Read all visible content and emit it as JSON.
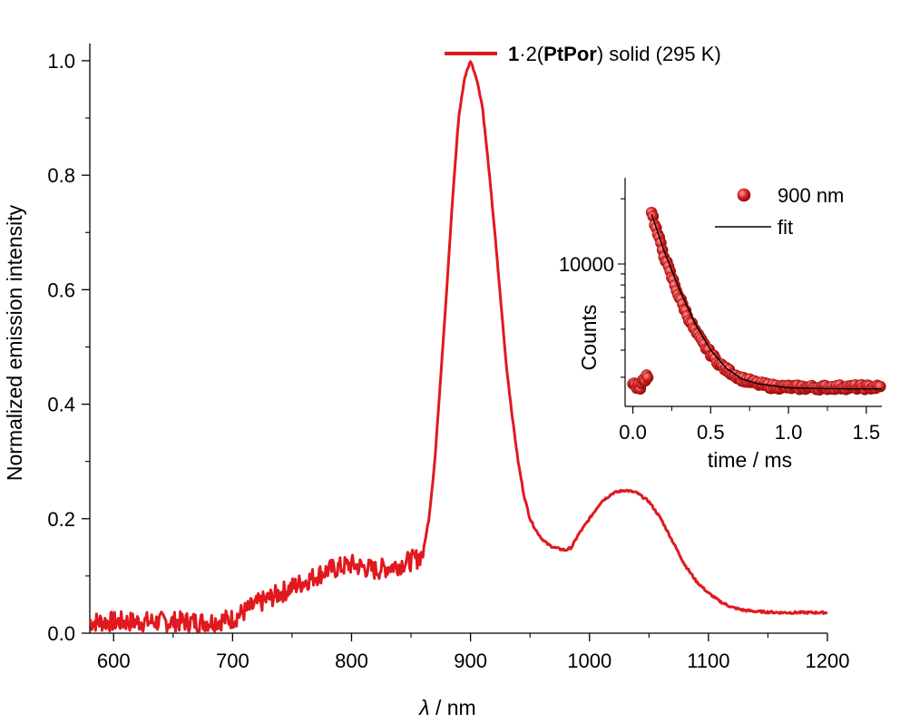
{
  "chart_data": [
    {
      "type": "line",
      "name": "emission-spectrum",
      "xlabel_symbol": "λ",
      "xlabel_unit": " / nm",
      "ylabel": "Normalized emission intensity",
      "xlim": [
        580,
        1200
      ],
      "ylim": [
        0,
        1.03
      ],
      "xticks": [
        600,
        700,
        800,
        900,
        1000,
        1100,
        1200
      ],
      "xtick_labels": [
        "600",
        "700",
        "800",
        "900",
        "1000",
        "1100",
        "1200"
      ],
      "yticks": [
        0.0,
        0.2,
        0.4,
        0.6,
        0.8,
        1.0
      ],
      "ytick_labels": [
        "0.0",
        "0.2",
        "0.4",
        "0.6",
        "0.8",
        "1.0"
      ],
      "legend": {
        "position": "top-center",
        "bold_1": "1",
        "mid": "·2(",
        "bold_2": "PtPor",
        "suffix": ") solid (295 K)"
      },
      "series": [
        {
          "name": "1·2(PtPor) solid (295 K)",
          "color": "#e0191e",
          "x": [
            580,
            600,
            620,
            640,
            660,
            680,
            700,
            720,
            740,
            760,
            780,
            800,
            820,
            840,
            855,
            860,
            865,
            870,
            875,
            880,
            885,
            890,
            895,
            900,
            905,
            910,
            915,
            920,
            925,
            930,
            935,
            940,
            945,
            950,
            955,
            960,
            965,
            970,
            975,
            980,
            985,
            990,
            1000,
            1010,
            1020,
            1030,
            1040,
            1050,
            1060,
            1070,
            1080,
            1090,
            1100,
            1110,
            1120,
            1130,
            1140,
            1160,
            1180,
            1200
          ],
          "y": [
            0.02,
            0.02,
            0.02,
            0.02,
            0.02,
            0.02,
            0.025,
            0.05,
            0.07,
            0.09,
            0.11,
            0.12,
            0.11,
            0.12,
            0.13,
            0.14,
            0.2,
            0.3,
            0.45,
            0.6,
            0.76,
            0.9,
            0.97,
            1.0,
            0.97,
            0.92,
            0.82,
            0.71,
            0.59,
            0.47,
            0.38,
            0.3,
            0.24,
            0.2,
            0.18,
            0.165,
            0.155,
            0.15,
            0.147,
            0.145,
            0.15,
            0.17,
            0.2,
            0.23,
            0.245,
            0.25,
            0.245,
            0.23,
            0.2,
            0.16,
            0.12,
            0.09,
            0.07,
            0.055,
            0.045,
            0.04,
            0.038,
            0.036,
            0.036,
            0.036
          ]
        }
      ]
    },
    {
      "type": "scatter",
      "name": "inset-decay",
      "xlabel": "time / ms",
      "ylabel": "Counts",
      "xlim": [
        -0.05,
        1.6
      ],
      "ylim": [
        2200,
        25000
      ],
      "yscale": "log",
      "xticks": [
        0.0,
        0.5,
        1.0,
        1.5
      ],
      "xtick_labels": [
        "0.0",
        "0.5",
        "1.0",
        "1.5"
      ],
      "yticks": [
        10000
      ],
      "ytick_labels": [
        "10000"
      ],
      "legend": {
        "position": "top-right",
        "points_label": "900 nm",
        "fit_label": "fit"
      },
      "series": [
        {
          "name": "900 nm",
          "color": "#d81e1e",
          "x": [
            0.0,
            0.02,
            0.04,
            0.06,
            0.08,
            0.1,
            0.12,
            0.15,
            0.2,
            0.25,
            0.3,
            0.35,
            0.4,
            0.45,
            0.5,
            0.55,
            0.6,
            0.7,
            0.8,
            0.9,
            1.0,
            1.1,
            1.2,
            1.3,
            1.4,
            1.5,
            1.6
          ],
          "y": [
            2800,
            2750,
            2700,
            2800,
            3000,
            3100,
            17500,
            14500,
            11000,
            8700,
            7000,
            5800,
            4900,
            4300,
            3850,
            3500,
            3250,
            2950,
            2800,
            2720,
            2700,
            2690,
            2690,
            2700,
            2700,
            2700,
            2700
          ]
        },
        {
          "name": "fit",
          "color": "#000000",
          "x": [
            0.12,
            0.2,
            0.3,
            0.4,
            0.5,
            0.6,
            0.7,
            0.8,
            1.0,
            1.2,
            1.4,
            1.6
          ],
          "y": [
            17000,
            11500,
            7600,
            5300,
            4000,
            3300,
            2950,
            2800,
            2680,
            2660,
            2650,
            2650
          ]
        }
      ]
    }
  ]
}
